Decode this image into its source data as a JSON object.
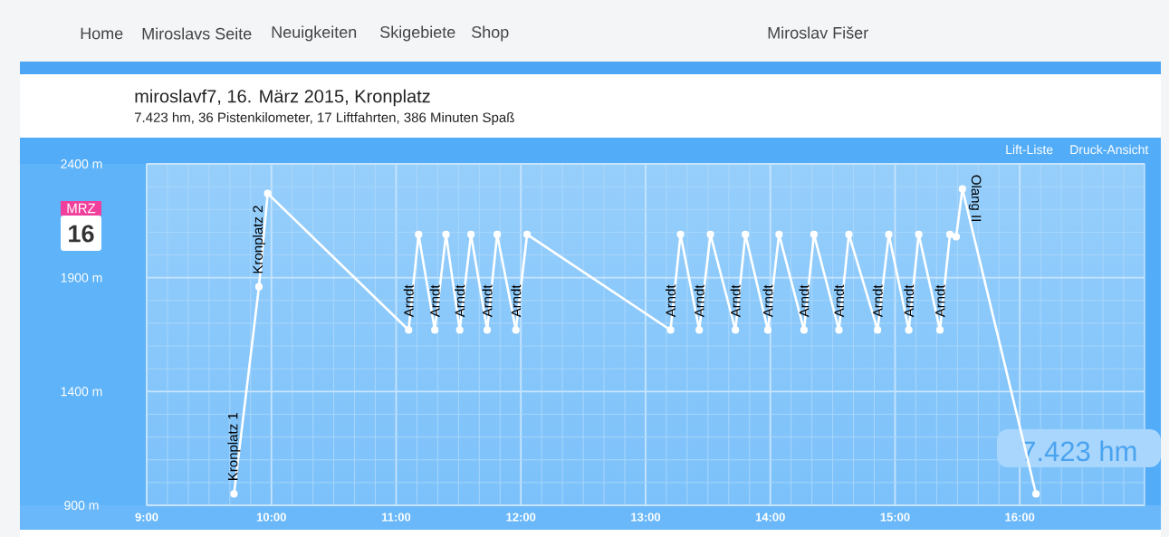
{
  "chart_data": {
    "type": "line",
    "title": "miroslavf7, 16. März 2015, Kronplatz",
    "subtitle": "7.423 hm, 36 Pistenkilometer, 17 Liftfahrten, 386 Minuten Spaß",
    "x": [
      9.7,
      9.9,
      9.97,
      11.1,
      11.18,
      11.31,
      11.4,
      11.51,
      11.6,
      11.73,
      11.81,
      11.96,
      12.05,
      13.2,
      13.28,
      13.43,
      13.52,
      13.72,
      13.8,
      13.98,
      14.07,
      14.27,
      14.35,
      14.55,
      14.63,
      14.86,
      14.95,
      15.11,
      15.19,
      15.36,
      15.44,
      15.49,
      15.54,
      16.13
    ],
    "values": [
      950,
      1860,
      2270,
      1670,
      2090,
      1670,
      2090,
      1670,
      2090,
      1670,
      2090,
      1670,
      2090,
      1670,
      2090,
      1670,
      2090,
      1670,
      2090,
      1670,
      2090,
      1670,
      2090,
      1670,
      2090,
      1670,
      2090,
      1670,
      2090,
      1670,
      2090,
      2080,
      2290,
      950
    ],
    "color": "#ffffff",
    "marker": "circle",
    "line_style": "solid",
    "grid": true,
    "xlim": [
      9,
      17
    ],
    "ylim": [
      900,
      2400
    ],
    "xticks": [
      {
        "value": 9,
        "label": "9:00"
      },
      {
        "value": 10,
        "label": "10:00"
      },
      {
        "value": 11,
        "label": "11:00"
      },
      {
        "value": 12,
        "label": "12:00"
      },
      {
        "value": 13,
        "label": "13:00"
      },
      {
        "value": 14,
        "label": "14:00"
      },
      {
        "value": 15,
        "label": "15:00"
      },
      {
        "value": 16,
        "label": "16:00"
      }
    ],
    "yticks": [
      {
        "value": 900,
        "label": "900 m"
      },
      {
        "value": 1400,
        "label": "1400 m"
      },
      {
        "value": 1900,
        "label": "1900 m"
      },
      {
        "value": 2400,
        "label": "2400 m"
      }
    ],
    "annotations": [
      "Home",
      "Miroslavs Seite",
      "Neuigkeiten",
      "Skigebiete",
      "Shop",
      "Miroslav Fišer",
      "Lift-Liste",
      "Druck-Ansicht",
      "MRZ",
      "16",
      {
        "text": "Kronplatz 1",
        "x": 9.7,
        "y": 950
      },
      {
        "text": "Kronplatz 2",
        "x": 9.9,
        "y": 1860
      },
      {
        "text": "Arndt",
        "x": 11.1,
        "y": 1670
      },
      {
        "text": "Arndt",
        "x": 11.31,
        "y": 1670
      },
      {
        "text": "Arndt",
        "x": 11.51,
        "y": 1670
      },
      {
        "text": "Arndt",
        "x": 11.73,
        "y": 1670
      },
      {
        "text": "Arndt",
        "x": 11.96,
        "y": 1670
      },
      {
        "text": "Arndt",
        "x": 13.2,
        "y": 1670
      },
      {
        "text": "Arndt",
        "x": 13.43,
        "y": 1670
      },
      {
        "text": "Arndt",
        "x": 13.72,
        "y": 1670
      },
      {
        "text": "Arndt",
        "x": 13.98,
        "y": 1670
      },
      {
        "text": "Arndt",
        "x": 14.27,
        "y": 1670
      },
      {
        "text": "Arndt",
        "x": 14.55,
        "y": 1670
      },
      {
        "text": "Arndt",
        "x": 14.86,
        "y": 1670
      },
      {
        "text": "Arndt",
        "x": 15.11,
        "y": 1670
      },
      {
        "text": "Arndt",
        "x": 15.36,
        "y": 1670
      },
      {
        "text": "Olang II",
        "x": 15.54,
        "y": 2290
      },
      "7.423 hm"
    ]
  }
}
